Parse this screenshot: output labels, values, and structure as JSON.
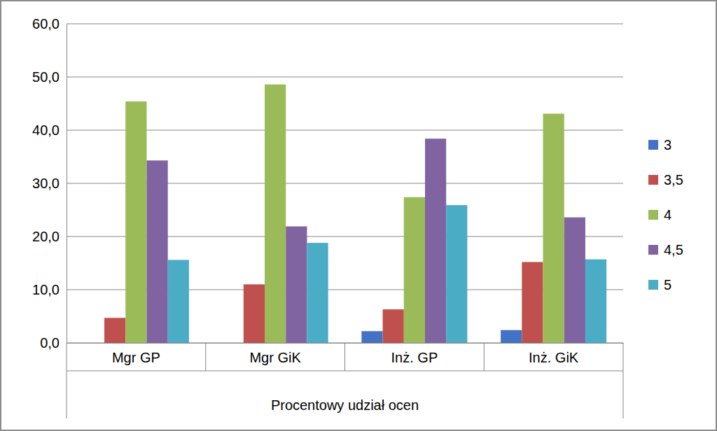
{
  "chart_data": {
    "type": "bar",
    "x_label": "Procentowy udział ocen",
    "categories": [
      "Mgr GP",
      "Mgr GiK",
      "Inż. GP",
      "Inż. GiK"
    ],
    "series": [
      {
        "name": "3",
        "color": "#4472c4",
        "values": [
          0,
          0,
          2.2,
          2.4
        ]
      },
      {
        "name": "3,5",
        "color": "#c0504d",
        "values": [
          4.7,
          11.0,
          6.3,
          15.2
        ]
      },
      {
        "name": "4",
        "color": "#9bbb59",
        "values": [
          45.4,
          48.6,
          27.4,
          43.1
        ]
      },
      {
        "name": "4,5",
        "color": "#8064a2",
        "values": [
          34.3,
          21.9,
          38.4,
          23.6
        ]
      },
      {
        "name": "5",
        "color": "#4bacc6",
        "values": [
          15.6,
          18.8,
          25.9,
          15.7
        ]
      }
    ],
    "ylim": [
      0,
      60
    ],
    "yticks": [
      {
        "value": 0,
        "label": "0,0"
      },
      {
        "value": 10,
        "label": "10,0"
      },
      {
        "value": 20,
        "label": "20,0"
      },
      {
        "value": 30,
        "label": "30,0"
      },
      {
        "value": 40,
        "label": "40,0"
      },
      {
        "value": 50,
        "label": "50,0"
      },
      {
        "value": 60,
        "label": "60,0"
      }
    ],
    "grid": true,
    "legend": "right"
  }
}
